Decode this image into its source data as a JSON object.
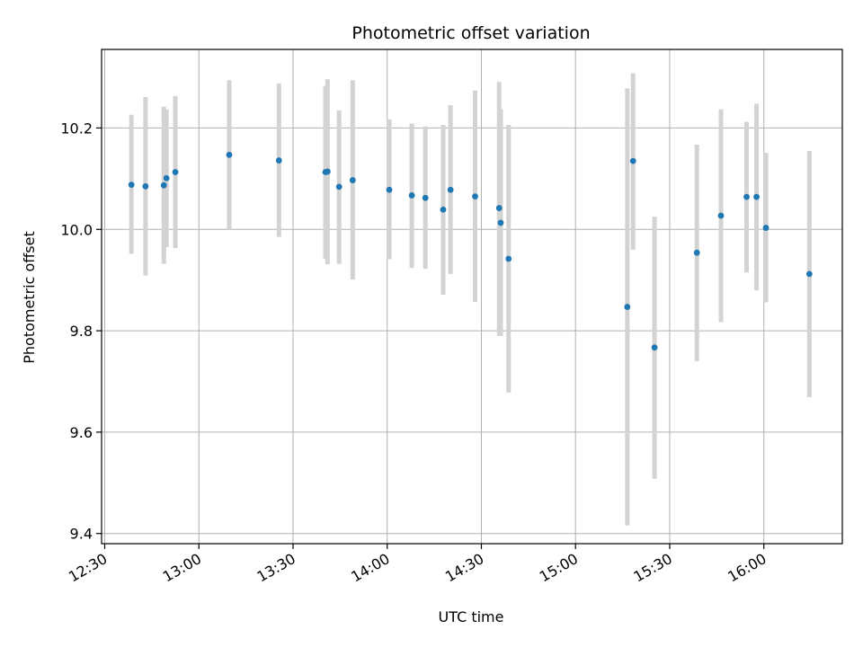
{
  "chart_data": {
    "type": "scatter",
    "title": "Photometric offset variation",
    "xlabel": "UTC time",
    "ylabel": "Photometric offset",
    "x_ticks": [
      "12:30",
      "13:00",
      "13:30",
      "14:00",
      "14:30",
      "15:00",
      "15:30",
      "16:00"
    ],
    "y_ticks": [
      "9.4",
      "9.6",
      "9.8",
      "10.0",
      "10.2"
    ],
    "xlim": [
      "12:29",
      "16:25"
    ],
    "ylim": [
      9.38,
      10.355
    ],
    "grid": true,
    "colors": {
      "marker": "#1f77b4",
      "errorbar": "#d3d3d3",
      "grid": "#b0b0b0"
    },
    "points": [
      {
        "x": "12:38:30",
        "y": 10.088,
        "ylow": 9.952,
        "yhigh": 10.226
      },
      {
        "x": "12:43:00",
        "y": 10.085,
        "ylow": 9.909,
        "yhigh": 10.261
      },
      {
        "x": "12:48:50",
        "y": 10.087,
        "ylow": 9.932,
        "yhigh": 10.242
      },
      {
        "x": "12:49:40",
        "y": 10.101,
        "ylow": 9.965,
        "yhigh": 10.237
      },
      {
        "x": "12:52:30",
        "y": 10.113,
        "ylow": 9.963,
        "yhigh": 10.263
      },
      {
        "x": "13:09:40",
        "y": 10.147,
        "ylow": 10.0,
        "yhigh": 10.294
      },
      {
        "x": "13:25:30",
        "y": 10.136,
        "ylow": 9.985,
        "yhigh": 10.288
      },
      {
        "x": "13:40:20",
        "y": 10.113,
        "ylow": 9.942,
        "yhigh": 10.283
      },
      {
        "x": "13:41:00",
        "y": 10.114,
        "ylow": 9.931,
        "yhigh": 10.296
      },
      {
        "x": "13:44:40",
        "y": 10.084,
        "ylow": 9.932,
        "yhigh": 10.235
      },
      {
        "x": "13:49:00",
        "y": 10.097,
        "ylow": 9.901,
        "yhigh": 10.294
      },
      {
        "x": "14:00:40",
        "y": 10.078,
        "ylow": 9.941,
        "yhigh": 10.217
      },
      {
        "x": "14:07:50",
        "y": 10.067,
        "ylow": 9.924,
        "yhigh": 10.209
      },
      {
        "x": "14:12:10",
        "y": 10.062,
        "ylow": 9.922,
        "yhigh": 10.203
      },
      {
        "x": "14:17:50",
        "y": 10.039,
        "ylow": 9.871,
        "yhigh": 10.206
      },
      {
        "x": "14:20:10",
        "y": 10.078,
        "ylow": 9.912,
        "yhigh": 10.245
      },
      {
        "x": "14:28:00",
        "y": 10.065,
        "ylow": 9.857,
        "yhigh": 10.274
      },
      {
        "x": "14:35:40",
        "y": 10.042,
        "ylow": 9.79,
        "yhigh": 10.291
      },
      {
        "x": "14:36:10",
        "y": 10.013,
        "ylow": 9.79,
        "yhigh": 10.237
      },
      {
        "x": "14:38:40",
        "y": 9.942,
        "ylow": 9.678,
        "yhigh": 10.206
      },
      {
        "x": "15:16:30",
        "y": 9.847,
        "ylow": 9.416,
        "yhigh": 10.278
      },
      {
        "x": "15:18:20",
        "y": 10.135,
        "ylow": 9.96,
        "yhigh": 10.308
      },
      {
        "x": "15:25:10",
        "y": 9.767,
        "ylow": 9.508,
        "yhigh": 10.025
      },
      {
        "x": "15:38:40",
        "y": 9.954,
        "ylow": 9.74,
        "yhigh": 10.167
      },
      {
        "x": "15:46:20",
        "y": 10.027,
        "ylow": 9.817,
        "yhigh": 10.237
      },
      {
        "x": "15:54:30",
        "y": 10.064,
        "ylow": 9.915,
        "yhigh": 10.212
      },
      {
        "x": "15:57:40",
        "y": 10.064,
        "ylow": 9.88,
        "yhigh": 10.248
      },
      {
        "x": "16:00:40",
        "y": 10.003,
        "ylow": 9.856,
        "yhigh": 10.151
      },
      {
        "x": "16:14:30",
        "y": 9.912,
        "ylow": 9.669,
        "yhigh": 10.155
      }
    ]
  }
}
